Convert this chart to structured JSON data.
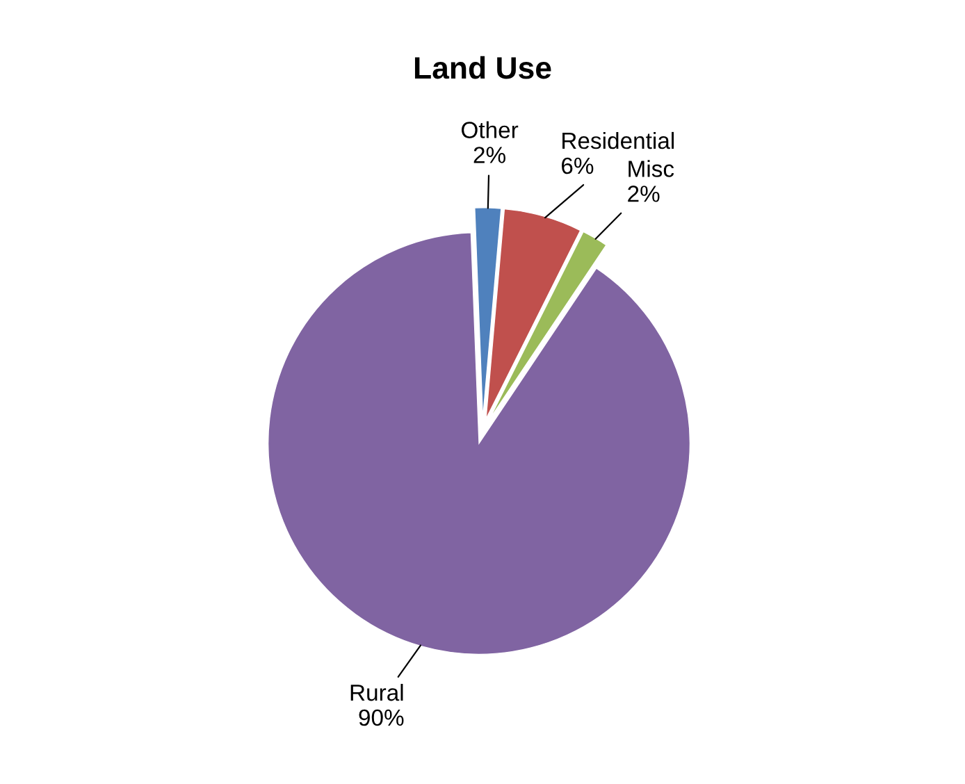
{
  "chart_data": {
    "type": "pie",
    "title": "Land Use",
    "categories": [
      "Residential",
      "Misc",
      "Rural",
      "Other"
    ],
    "values": [
      6,
      2,
      90,
      2
    ],
    "colors": [
      "#c0504d",
      "#9bbb59",
      "#8064a2",
      "#4f81bd"
    ],
    "value_labels": [
      "6%",
      "2%",
      "90%",
      "2%"
    ],
    "legend": false
  }
}
